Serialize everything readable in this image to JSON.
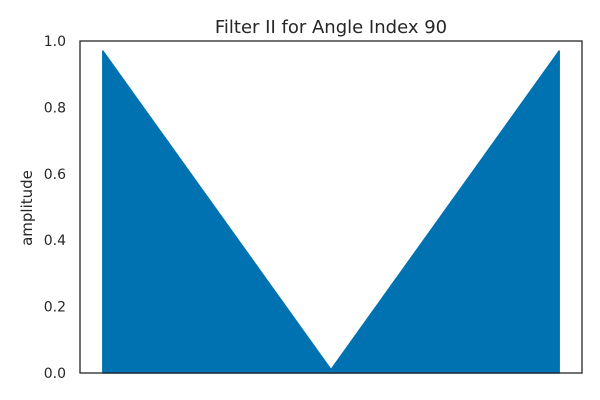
{
  "chart_data": {
    "type": "area",
    "title": "Filter II for Angle Index 90",
    "xlabel": "",
    "ylabel": "amplitude",
    "ylim": [
      0,
      1.0
    ],
    "yticks": [
      "0.0",
      "0.2",
      "0.4",
      "0.6",
      "0.8",
      "1.0"
    ],
    "xticks": [],
    "grid": false,
    "series": [
      {
        "x": [
          -1.0,
          0.0,
          1.0
        ],
        "values": [
          0.97,
          0.01,
          0.97
        ]
      }
    ],
    "colors": {
      "fill": "#0072b2",
      "axis": "#262626"
    }
  }
}
